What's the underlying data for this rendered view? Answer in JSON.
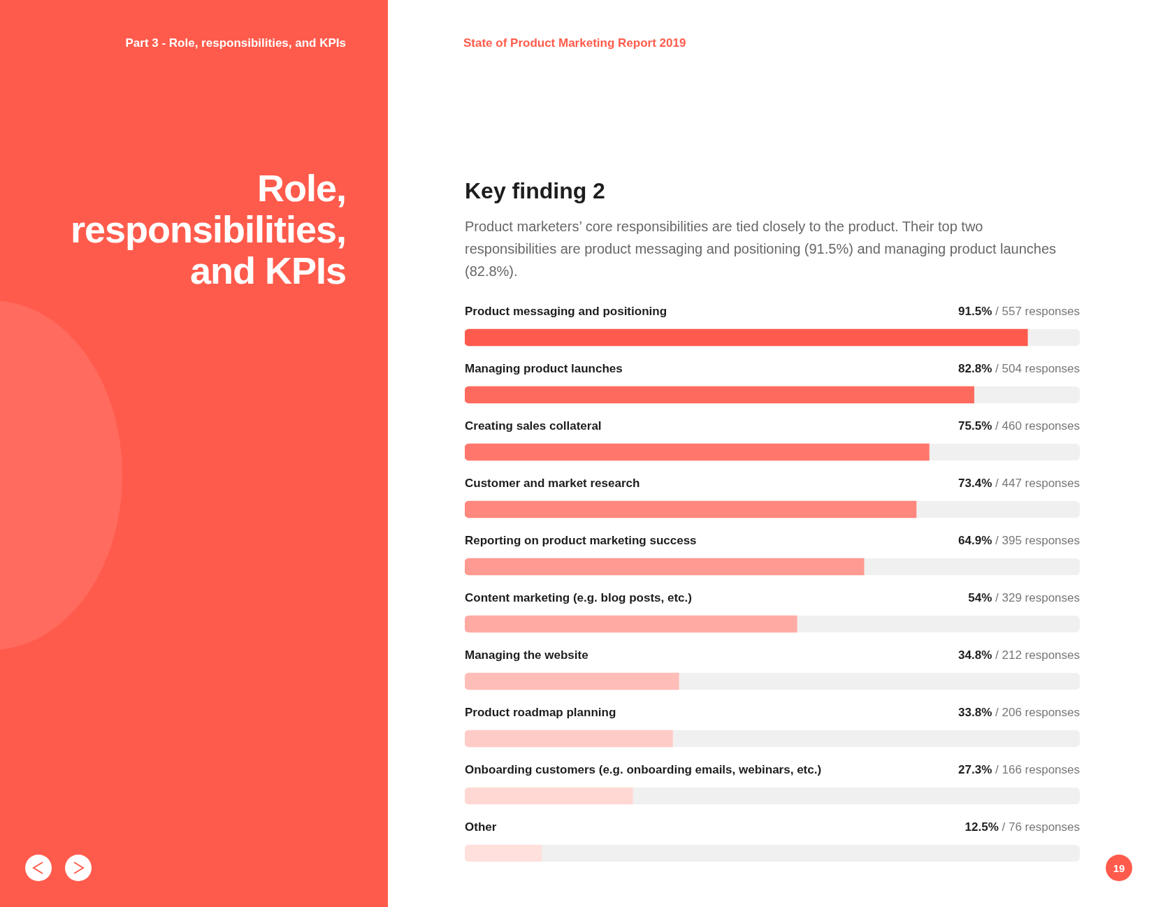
{
  "chart_data": {
    "type": "bar",
    "orientation": "horizontal",
    "title": "Key finding 2",
    "subtitle": "Product marketers’ core responsibilities are tied closely to the product. Their top two responsibilities are product messaging and positioning (91.5%) and managing product launches (82.8%).",
    "categories": [
      "Product messaging and positioning",
      "Managing product launches",
      "Creating sales collateral",
      "Customer and market research",
      "Reporting on product marketing success",
      "Content marketing (e.g. blog posts, etc.)",
      "Managing the website",
      "Product roadmap planning",
      "Onboarding customers (e.g. onboarding emails, webinars, etc.)",
      "Other"
    ],
    "values": [
      91.5,
      82.8,
      75.5,
      73.4,
      64.9,
      54,
      34.8,
      33.8,
      27.3,
      12.5
    ],
    "colors": [
      "#ff5a4e",
      "#ff6a5e",
      "#ff776c",
      "#ff877d",
      "#ff9a92",
      "#ffaba4",
      "#ffbdb8",
      "#ffcbc7",
      "#ffd8d4",
      "#ffe0dd"
    ],
    "value_labels": [
      "91.5% / 557 responses",
      "82.8% / 504 responses",
      "75.5% / 460 responses",
      "73.4% / 447 responses",
      "64.9% / 395 responses",
      "54% / 329 responses",
      "34.8% / 212 responses",
      "33.8% / 206 responses",
      "27.3% / 166 responses",
      "12.5% / 76 responses"
    ],
    "xlim": [
      0,
      100
    ],
    "annotations": [
      "Part 3 - Role, responsibilities, and KPIs",
      "Role, responsibilities, and KPIs",
      "State of Product Marketing Report 2019",
      "19"
    ]
  }
}
